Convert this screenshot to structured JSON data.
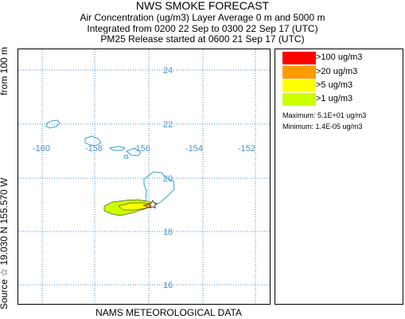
{
  "header": {
    "title": "NWS SMOKE FORECAST",
    "line2": "Air Concentration (ug/m3) Layer Average    0 m and  5000 m",
    "line3": "Integrated from 0200 22 Sep to 0300 22 Sep 17 (UTC)",
    "line4": "PM25 Release started at 0600 21 Sep 17 (UTC)"
  },
  "side": {
    "source": "Source ☆  19.030  N 155.570  W",
    "from": "from  100 m"
  },
  "footer": {
    "data_source": "NAMS METEOROLOGICAL DATA"
  },
  "map": {
    "latitudes": [
      "24",
      "22",
      "20",
      "18",
      "16"
    ],
    "longitudes": [
      "-160",
      "-158",
      "-156",
      "-154",
      "-152"
    ],
    "grid_color": "#4a90c8",
    "coast_color": "#3aa0c8",
    "source_marker": "star"
  },
  "legend": {
    "items": [
      {
        "label": ">100 ug/m3",
        "color": "#ff0000"
      },
      {
        "label": ">20 ug/m3",
        "color": "#ff9900"
      },
      {
        "label": ">5 ug/m3",
        "color": "#ffff00"
      },
      {
        "label": ">1 ug/m3",
        "color": "#ccff00"
      }
    ],
    "maximum": "Maximum: 5.1E+01 ug/m3",
    "minimum": "Minimum: 1.4E-05 ug/m3"
  }
}
